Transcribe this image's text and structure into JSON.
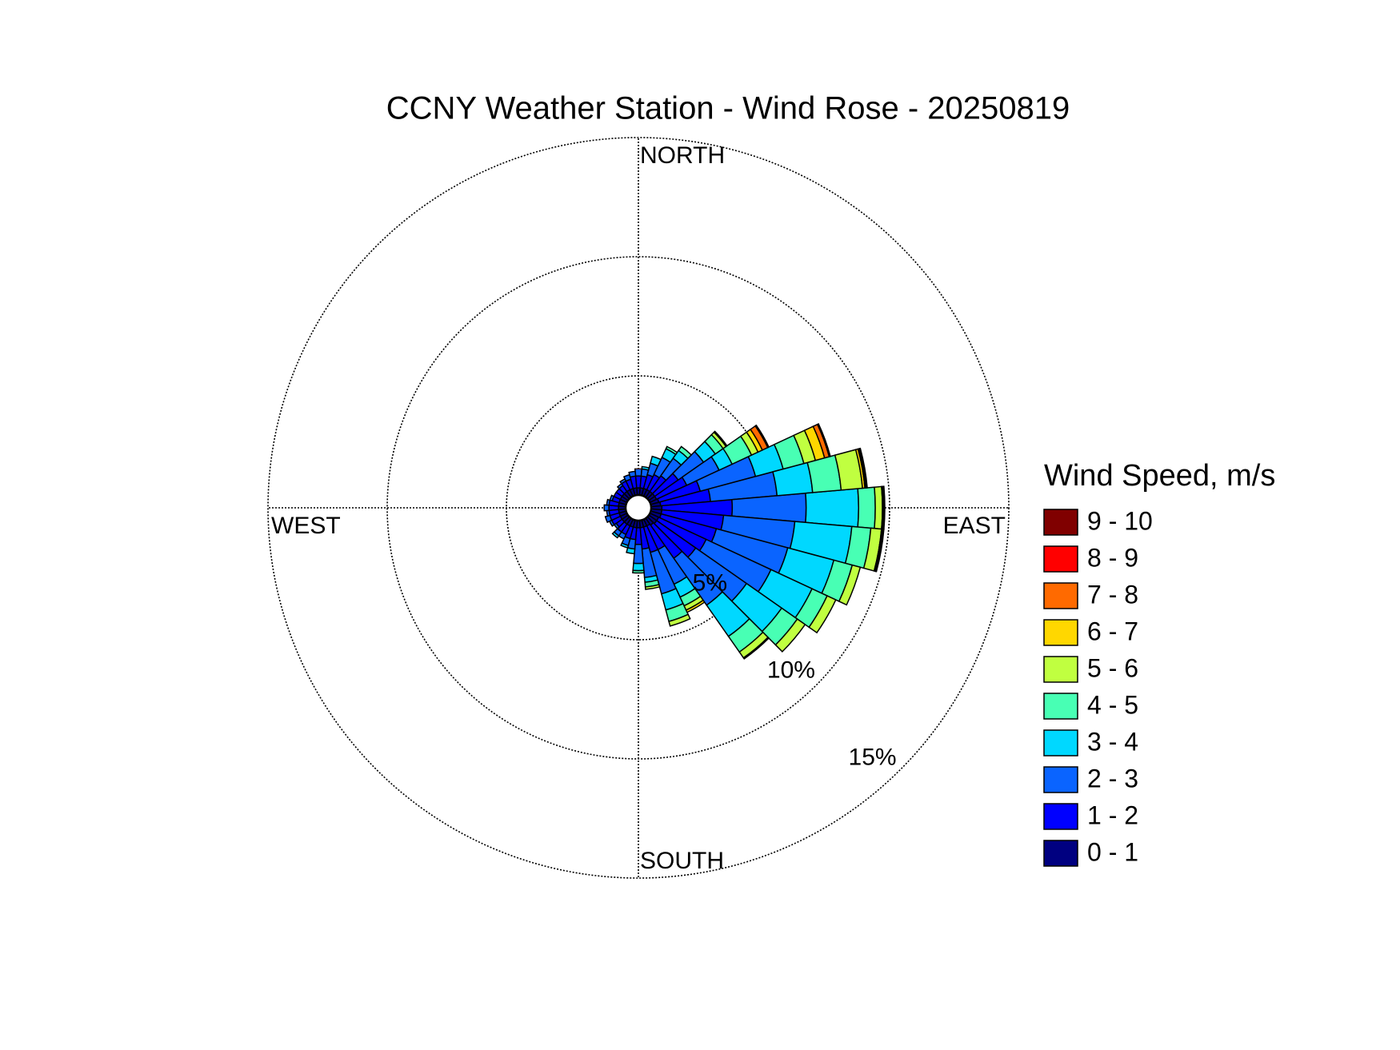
{
  "chart_data": {
    "type": "windrose",
    "title": "CCNY Weather Station - Wind Rose - 20250819",
    "legend_title": "Wind Speed, m/s",
    "directions": [
      0,
      10,
      20,
      30,
      40,
      50,
      60,
      70,
      80,
      90,
      100,
      110,
      120,
      130,
      140,
      150,
      160,
      170,
      180,
      190,
      200,
      210,
      220,
      230,
      240,
      250,
      260,
      270,
      280,
      290,
      300,
      310,
      320,
      330,
      340,
      350
    ],
    "direction_ticks": [
      {
        "value": 0,
        "label": "NORTH"
      },
      {
        "value": 90,
        "label": "EAST"
      },
      {
        "value": 180,
        "label": "SOUTH"
      },
      {
        "value": 270,
        "label": "WEST"
      }
    ],
    "rlim": [
      0,
      15
    ],
    "rticks": [
      {
        "value": 5,
        "label": "5%"
      },
      {
        "value": 10,
        "label": "10%"
      },
      {
        "value": 15,
        "label": "15%"
      }
    ],
    "rtick_angle": 137,
    "grid": true,
    "stacked": true,
    "legend": "right",
    "series": [
      {
        "name": "0 - 1",
        "color": "#000080",
        "values": [
          0.3,
          0.3,
          0.3,
          0.3,
          0.3,
          0.3,
          0.3,
          0.35,
          0.4,
          0.45,
          0.45,
          0.45,
          0.4,
          0.4,
          0.35,
          0.3,
          0.3,
          0.3,
          0.3,
          0.3,
          0.3,
          0.3,
          0.3,
          0.3,
          0.3,
          0.3,
          0.3,
          0.3,
          0.3,
          0.3,
          0.3,
          0.3,
          0.3,
          0.3,
          0.3,
          0.3
        ]
      },
      {
        "name": "1 - 2",
        "color": "#0000ff",
        "values": [
          0.5,
          0.5,
          0.6,
          0.7,
          0.8,
          1.2,
          1.4,
          1.8,
          2.1,
          2.95,
          2.6,
          2.4,
          2.2,
          2.0,
          1.7,
          1.1,
          1.1,
          0.9,
          0.7,
          0.5,
          0.5,
          0.4,
          0.4,
          0.3,
          0.4,
          0.4,
          0.4,
          0.4,
          0.4,
          0.3,
          0.3,
          0.3,
          0.3,
          0.4,
          0.4,
          0.5
        ]
      },
      {
        "name": "2 - 3",
        "color": "#0a64ff",
        "values": [
          0.3,
          0.3,
          0.5,
          0.8,
          0.9,
          1.3,
          1.5,
          2.4,
          2.8,
          3.1,
          3.0,
          3.1,
          3.0,
          2.6,
          2.4,
          1.6,
          1.8,
          1.2,
          0.8,
          0.4,
          0.3,
          0.2,
          0.2,
          0.1,
          0.1,
          0.2,
          0.1,
          0.2,
          0.1,
          0.1,
          0,
          0,
          0.1,
          0.1,
          0.2,
          0.2
        ]
      },
      {
        "name": "3 - 4",
        "color": "#00d8ff",
        "values": [
          0,
          0.1,
          0.3,
          0.4,
          0.4,
          0.6,
          0.6,
          1.2,
          1.5,
          2.2,
          2.4,
          2.0,
          1.9,
          1.8,
          1.6,
          0.6,
          0.7,
          0.2,
          0.3,
          0.2,
          0.1,
          0,
          0.1,
          0,
          0,
          0,
          0,
          0,
          0,
          0,
          0,
          0,
          0,
          0,
          0,
          0
        ]
      },
      {
        "name": "4 - 5",
        "color": "#48ffb4",
        "values": [
          0,
          0,
          0,
          0.1,
          0.2,
          0.4,
          0.9,
          0.9,
          1.2,
          0.7,
          0.8,
          0.8,
          0.7,
          0.8,
          0.8,
          0.4,
          0.5,
          0.2,
          0.1,
          0,
          0,
          0,
          0,
          0,
          0,
          0,
          0,
          0,
          0,
          0,
          0,
          0,
          0,
          0,
          0,
          0
        ]
      },
      {
        "name": "5 - 6",
        "color": "#c0ff40",
        "values": [
          0,
          0,
          0,
          0,
          0,
          0.15,
          0.3,
          0.5,
          0.9,
          0.3,
          0.45,
          0.35,
          0.4,
          0.4,
          0.3,
          0.2,
          0.2,
          0.1,
          0,
          0,
          0,
          0,
          0,
          0,
          0,
          0,
          0,
          0,
          0,
          0,
          0,
          0,
          0,
          0,
          0,
          0
        ]
      },
      {
        "name": "6 - 7",
        "color": "#ffd700",
        "values": [
          0,
          0,
          0,
          0,
          0,
          0.05,
          0.2,
          0.4,
          0.1,
          0.05,
          0.05,
          0,
          0,
          0,
          0.05,
          0.1,
          0,
          0,
          0,
          0,
          0,
          0,
          0,
          0,
          0,
          0,
          0,
          0,
          0,
          0,
          0,
          0,
          0,
          0,
          0,
          0
        ]
      },
      {
        "name": "7 - 8",
        "color": "#ff6a00",
        "values": [
          0,
          0,
          0,
          0,
          0,
          0,
          0.25,
          0.2,
          0.05,
          0.03,
          0.03,
          0,
          0,
          0,
          0,
          0,
          0,
          0,
          0,
          0,
          0,
          0,
          0,
          0,
          0,
          0,
          0,
          0,
          0,
          0,
          0,
          0,
          0,
          0,
          0,
          0
        ]
      },
      {
        "name": "8 - 9",
        "color": "#ff0000",
        "values": [
          0,
          0,
          0,
          0,
          0,
          0,
          0.05,
          0.05,
          0.05,
          0.02,
          0.02,
          0,
          0,
          0,
          0,
          0,
          0,
          0,
          0,
          0,
          0,
          0,
          0,
          0,
          0,
          0,
          0,
          0,
          0,
          0,
          0,
          0,
          0,
          0,
          0,
          0
        ]
      },
      {
        "name": "9 - 10",
        "color": "#800000",
        "values": [
          0,
          0,
          0,
          0,
          0,
          0,
          0,
          0,
          0,
          0,
          0,
          0,
          0,
          0,
          0,
          0,
          0,
          0,
          0,
          0,
          0,
          0,
          0,
          0,
          0,
          0,
          0,
          0,
          0,
          0,
          0,
          0,
          0,
          0,
          0,
          0
        ]
      }
    ]
  }
}
